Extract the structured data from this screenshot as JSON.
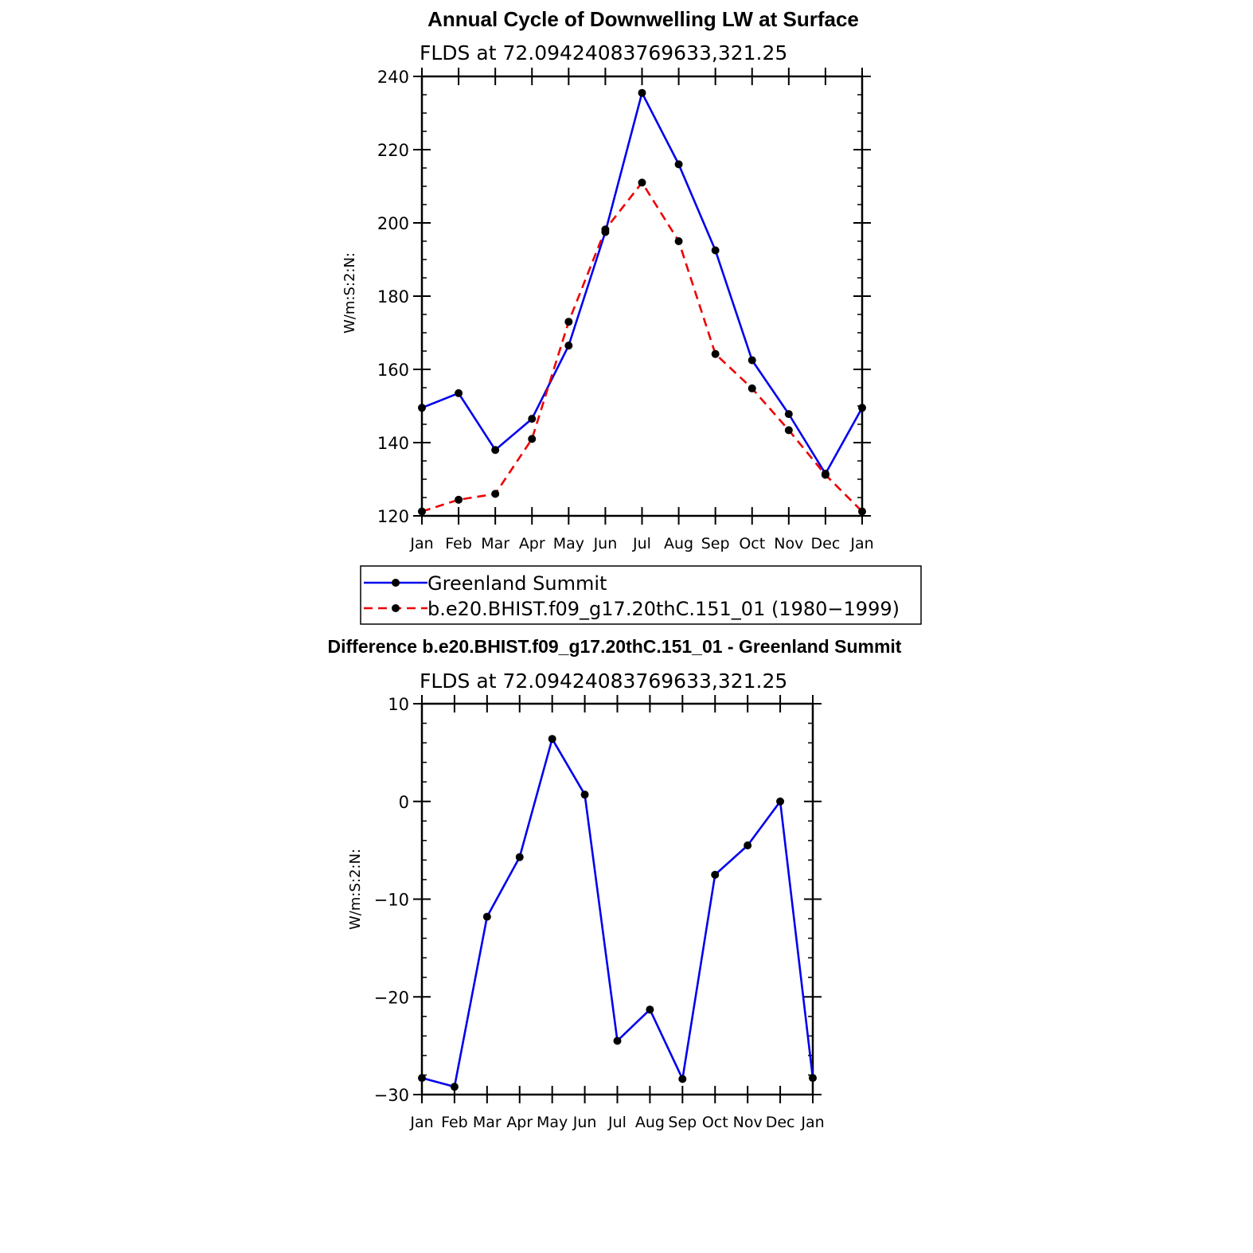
{
  "chart_data": [
    {
      "type": "line",
      "title": "Annual Cycle of Downwelling LW at Surface",
      "subtitle": "FLDS at 72.09424083769633,321.25",
      "ylabel": "W/m:S:2:N:",
      "xlabel": "",
      "categories": [
        "Jan",
        "Feb",
        "Mar",
        "Apr",
        "May",
        "Jun",
        "Jul",
        "Aug",
        "Sep",
        "Oct",
        "Nov",
        "Dec",
        "Jan"
      ],
      "ylim": [
        120,
        240
      ],
      "yticks": [
        "120",
        "140",
        "160",
        "180",
        "200",
        "220",
        "240"
      ],
      "series": [
        {
          "name": "Greenland Summit",
          "color": "#0000ee",
          "dash": "solid",
          "values": [
            149.5,
            153.5,
            138,
            146.5,
            166.5,
            197.5,
            235.5,
            216,
            192.5,
            162.5,
            147.8,
            131.5,
            149.5
          ]
        },
        {
          "name": "b.e20.BHIST.f09_g17.20thC.151_01 (1980−1999)",
          "color": "#ee0000",
          "dash": "dashed",
          "values": [
            121.2,
            124.4,
            126,
            141,
            173,
            198.2,
            211,
            195,
            164.2,
            154.8,
            143.4,
            131.2,
            121.2
          ]
        }
      ],
      "legend": "below"
    },
    {
      "type": "line",
      "title": "Difference b.e20.BHIST.f09_g17.20thC.151_01 - Greenland Summit",
      "subtitle": "FLDS at 72.09424083769633,321.25",
      "ylabel": "W/m:S:2:N:",
      "xlabel": "",
      "categories": [
        "Jan",
        "Feb",
        "Mar",
        "Apr",
        "May",
        "Jun",
        "Jul",
        "Aug",
        "Sep",
        "Oct",
        "Nov",
        "Dec",
        "Jan"
      ],
      "ylim": [
        -30,
        10
      ],
      "yticks": [
        "−30",
        "−20",
        "−10",
        "0",
        "10"
      ],
      "series": [
        {
          "color": "#0000ee",
          "dash": "solid",
          "values": [
            -28.3,
            -29.2,
            -11.8,
            -5.7,
            6.4,
            0.7,
            -24.5,
            -21.3,
            -28.4,
            -7.5,
            -4.5,
            0,
            -28.3
          ]
        }
      ]
    }
  ]
}
